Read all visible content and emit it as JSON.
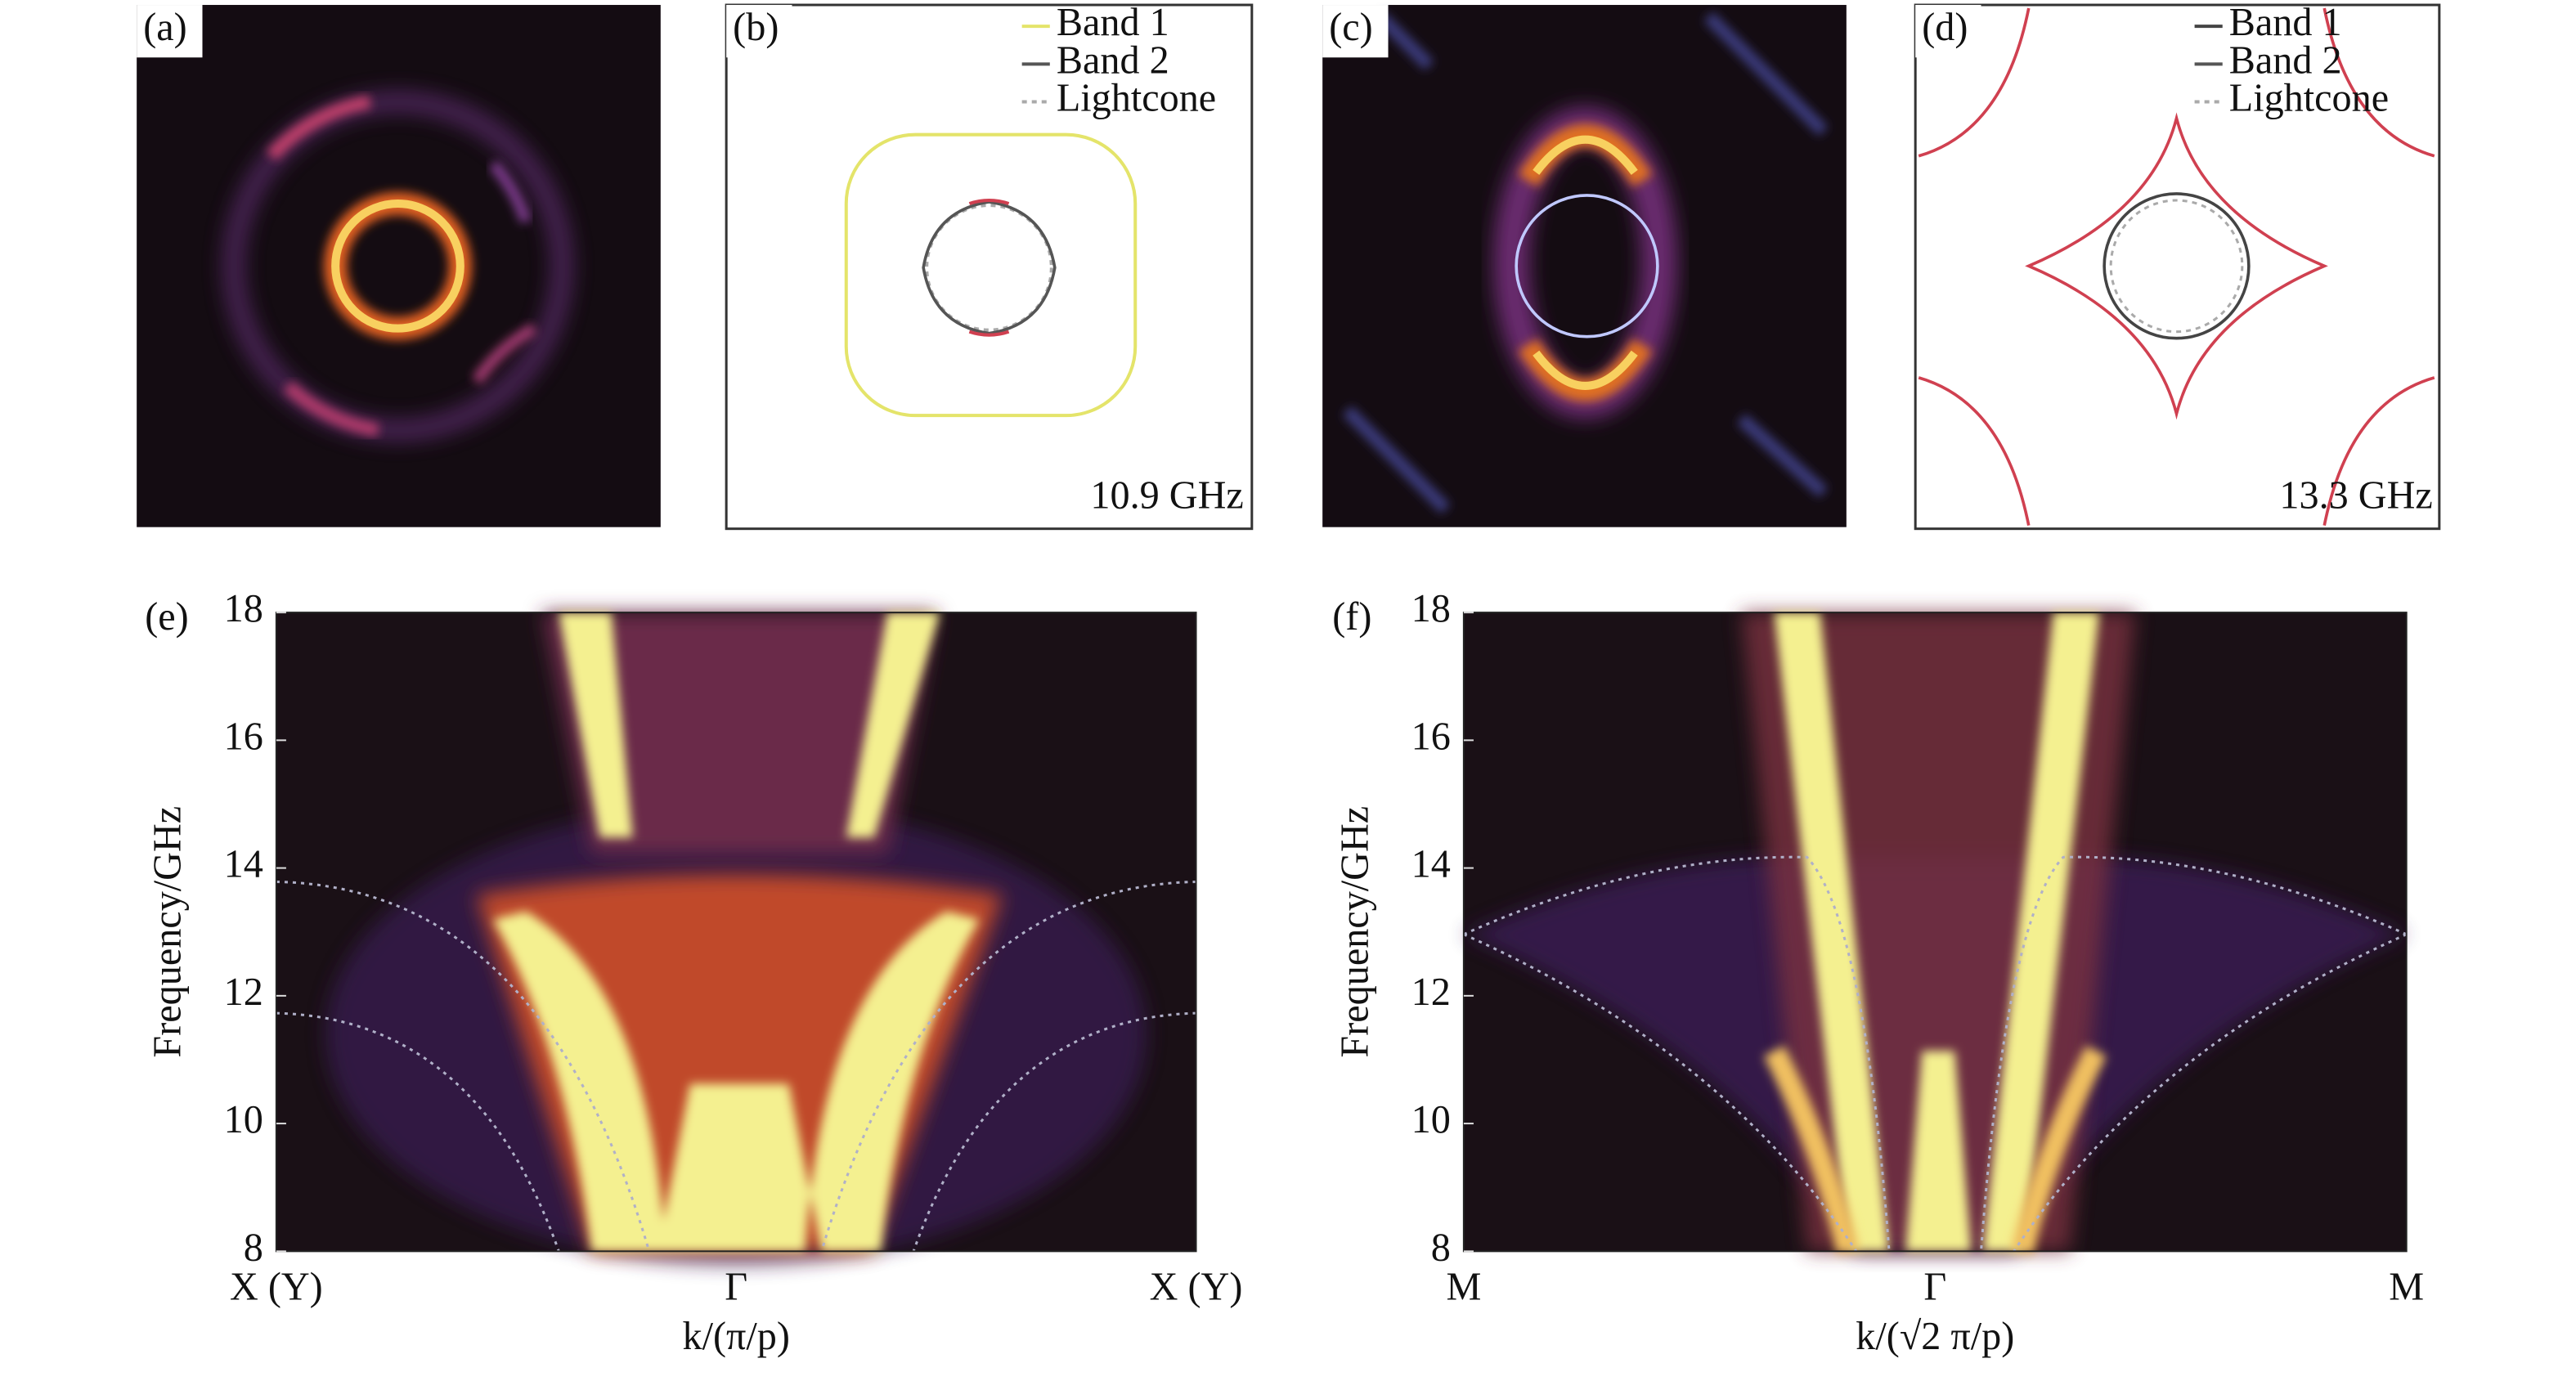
{
  "panels": [
    {
      "label": "(a)"
    },
    {
      "label": "(b)",
      "legend": [
        {
          "name": "Band 1",
          "color": "#e4e46a"
        },
        {
          "name": "Band 2",
          "color": "#555555"
        },
        {
          "name": "Lightcone",
          "color": "#aaaaaa"
        }
      ],
      "annotation": "10.9 GHz"
    },
    {
      "label": "(c)"
    },
    {
      "label": "(d)",
      "legend": [
        {
          "name": "Band 1",
          "color": "#444444"
        },
        {
          "name": "Band 2",
          "color": "#555555"
        },
        {
          "name": "Lightcone",
          "color": "#aaaaaa"
        }
      ],
      "annotation": "13.3 GHz"
    }
  ],
  "chart_data": [
    {
      "type": "heatmap",
      "label": "(e)",
      "ylabel": "Frequency/GHz",
      "xlabel": "k/(π/p)",
      "categories": [
        "X (Y)",
        "Γ",
        "X (Y)"
      ],
      "ylim": [
        8,
        18
      ],
      "yticks": [
        8,
        10,
        12,
        14,
        16,
        18
      ]
    },
    {
      "type": "heatmap",
      "label": "(f)",
      "ylabel": "Frequency/GHz",
      "xlabel": "k/(√2 π/p)",
      "categories": [
        "M",
        "Γ",
        "M"
      ],
      "ylim": [
        8,
        18
      ],
      "yticks": [
        8,
        10,
        12,
        14,
        16,
        18
      ]
    }
  ]
}
